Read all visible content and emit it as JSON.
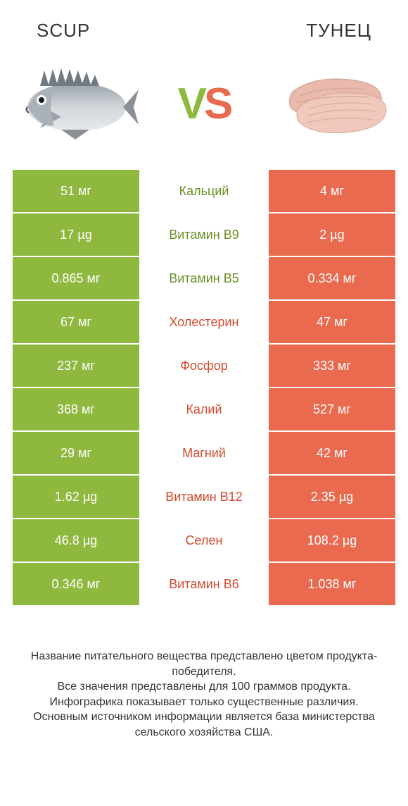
{
  "titles": {
    "left": "SCUP",
    "right": "ТУНЕЦ"
  },
  "vs": {
    "v": "V",
    "s": "S"
  },
  "colors": {
    "green": "#8fb83e",
    "orange": "#e96a4e",
    "text": "#333333"
  },
  "rows": [
    {
      "left": "51 мг",
      "label": "Кальций",
      "right": "4 мг",
      "winner": "left"
    },
    {
      "left": "17 µg",
      "label": "Витамин B9",
      "right": "2 µg",
      "winner": "left"
    },
    {
      "left": "0.865 мг",
      "label": "Витамин B5",
      "right": "0.334 мг",
      "winner": "left"
    },
    {
      "left": "67 мг",
      "label": "Холестерин",
      "right": "47 мг",
      "winner": "right"
    },
    {
      "left": "237 мг",
      "label": "Фосфор",
      "right": "333 мг",
      "winner": "right"
    },
    {
      "left": "368 мг",
      "label": "Калий",
      "right": "527 мг",
      "winner": "right"
    },
    {
      "left": "29 мг",
      "label": "Магний",
      "right": "42 мг",
      "winner": "right"
    },
    {
      "left": "1.62 µg",
      "label": "Витамин B12",
      "right": "2.35 µg",
      "winner": "right"
    },
    {
      "left": "46.8 µg",
      "label": "Селен",
      "right": "108.2 µg",
      "winner": "right"
    },
    {
      "left": "0.346 мг",
      "label": "Витамин B6",
      "right": "1.038 мг",
      "winner": "right"
    }
  ],
  "footer": [
    "Название питательного вещества представлено цветом продукта-победителя.",
    "Все значения представлены для 100 граммов продукта.",
    "Инфографика показывает только существенные различия.",
    "Основным источником информации является база министерства сельского хозяйства США."
  ]
}
